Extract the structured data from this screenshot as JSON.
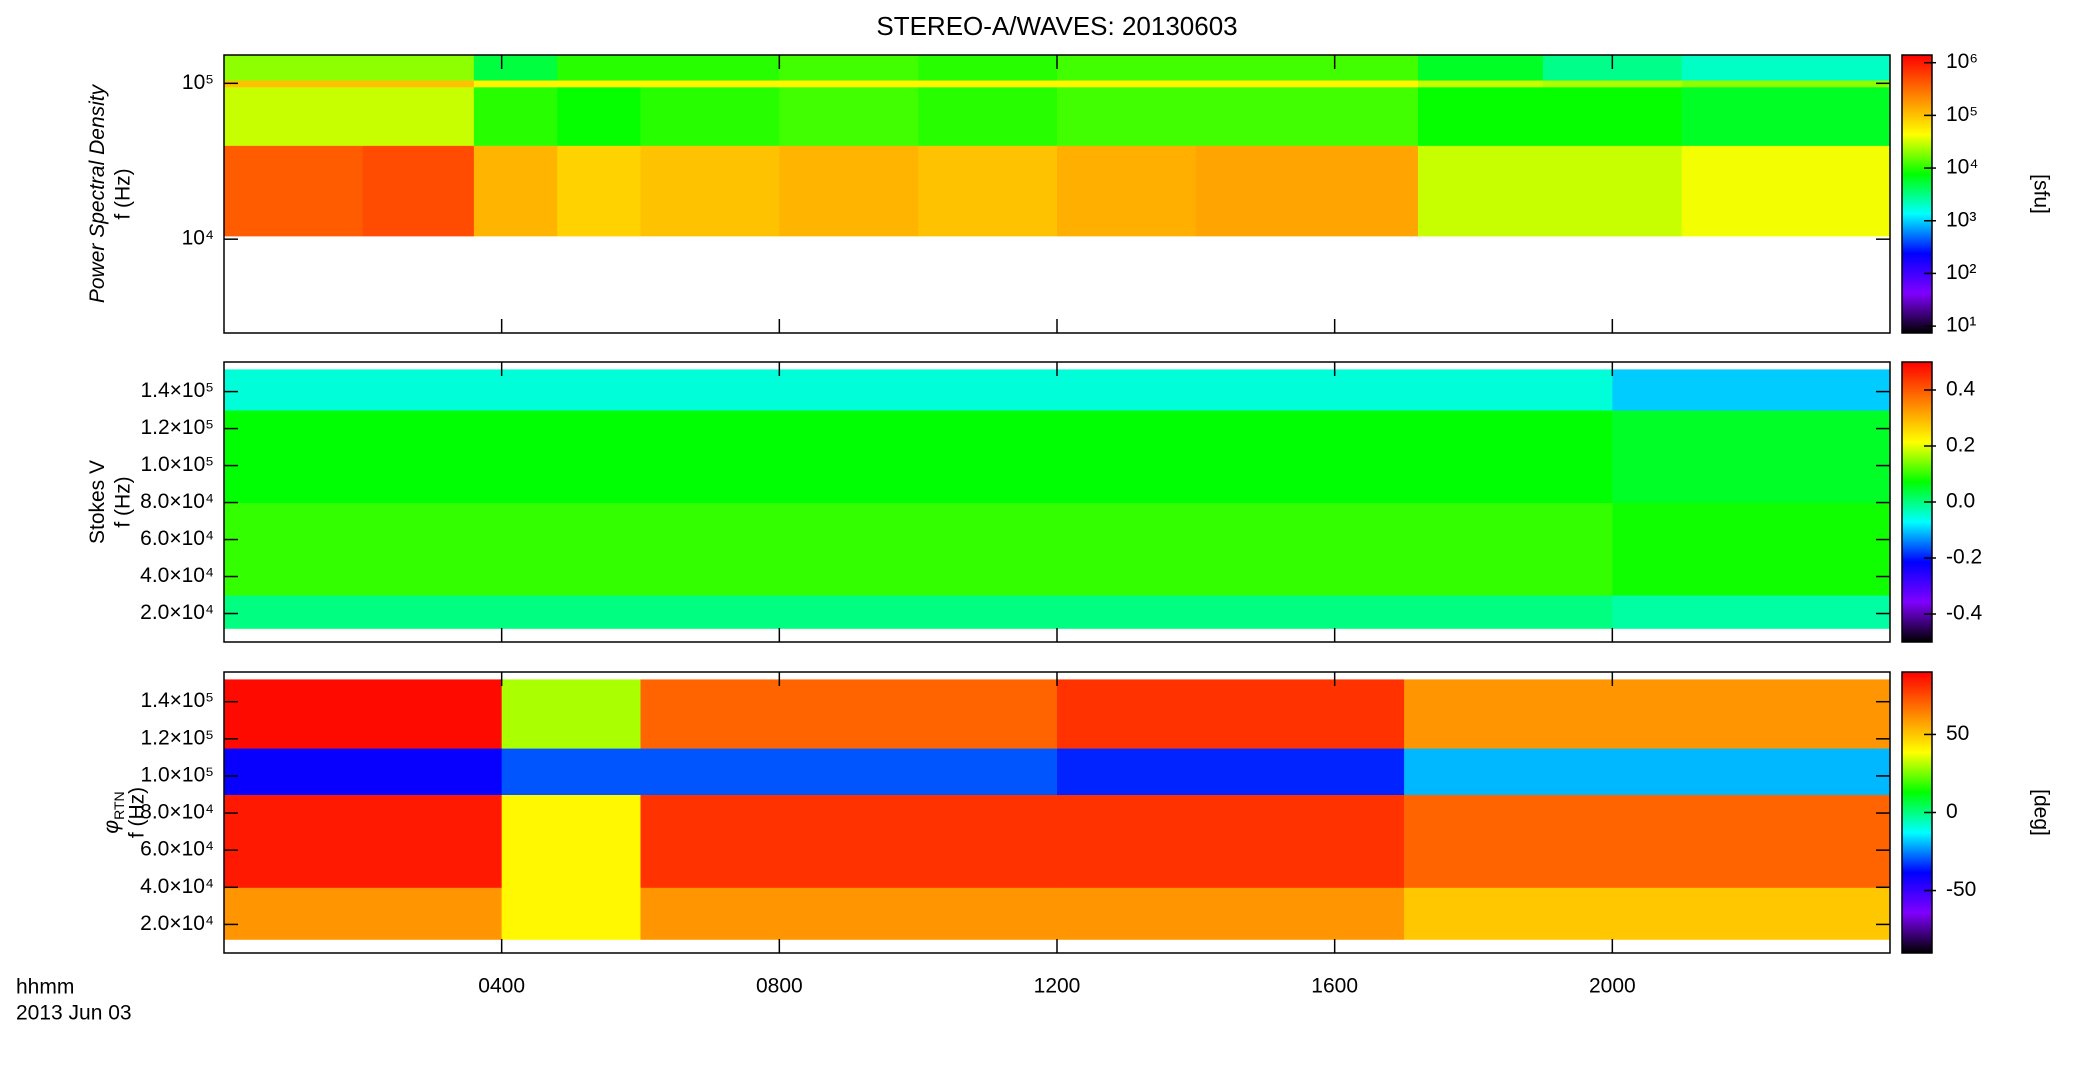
{
  "chart_data": [
    {
      "type": "heatmap",
      "title": "STEREO-A/WAVES: 20130603",
      "ylabel": "Power Spectral Density",
      "ylabel_unit": "f (Hz)",
      "clabel": "[sfu]",
      "colormap": [
        "#000000",
        "#8000ff",
        "#0000ff",
        "#00ffff",
        "#00ff00",
        "#ffff00",
        "#ff8000",
        "#ff0000"
      ],
      "x": [
        0,
        2,
        3.6,
        4.8,
        6,
        8,
        10,
        12,
        14,
        17.2,
        19,
        21,
        24
      ],
      "y": [
        10500,
        40000,
        95000,
        105000,
        152000
      ],
      "values": [
        [
          400000,
          500000,
          120000,
          80000,
          100000,
          120000,
          100000,
          130000,
          150000,
          30000,
          30000,
          40000
        ],
        [
          30000,
          30000,
          10000,
          8000,
          10000,
          12000,
          10000,
          12000,
          12000,
          8000,
          8000,
          6000
        ],
        [
          100000,
          100000,
          50000,
          50000,
          50000,
          50000,
          50000,
          50000,
          50000,
          30000,
          25000,
          20000
        ],
        [
          20000,
          20000,
          5000,
          10000,
          10000,
          12000,
          10000,
          12000,
          12000,
          6000,
          3000,
          2000
        ]
      ],
      "xlim": [
        0,
        24
      ],
      "xticks": [
        4,
        8,
        12,
        16,
        20
      ],
      "ylim": [
        2500,
        152000
      ],
      "ylog": true,
      "yticks": [
        {
          "value": 10000,
          "label": "10⁴"
        },
        {
          "value": 100000,
          "label": "10⁵"
        }
      ],
      "clim": [
        7.4,
        1400000
      ],
      "clog": true,
      "cticks": [
        {
          "value": 10,
          "label": "10¹"
        },
        {
          "value": 100,
          "label": "10²"
        },
        {
          "value": 1000,
          "label": "10³"
        },
        {
          "value": 10000,
          "label": "10⁴"
        },
        {
          "value": 100000,
          "label": "10⁵"
        },
        {
          "value": 1000000,
          "label": "10⁶"
        }
      ]
    },
    {
      "type": "heatmap",
      "ylabel": "Stokes V",
      "ylabel_unit": "f (Hz)",
      "colormap": [
        "#000000",
        "#8000ff",
        "#0000ff",
        "#00ffff",
        "#00ff00",
        "#ffff00",
        "#ff8000",
        "#ff0000"
      ],
      "x": [
        0,
        20,
        24
      ],
      "y": [
        12000,
        30000,
        80000,
        130000,
        152000
      ],
      "values": [
        [
          0.0,
          -0.02
        ],
        [
          0.1,
          0.08
        ],
        [
          0.07,
          0.05
        ],
        [
          -0.05,
          -0.1
        ]
      ],
      "xlim": [
        0,
        24
      ],
      "xticks": [
        4,
        8,
        12,
        16,
        20
      ],
      "ylim": [
        4600,
        156000
      ],
      "yticks": [
        {
          "value": 20000,
          "label": "2.0×10⁴"
        },
        {
          "value": 40000,
          "label": "4.0×10⁴"
        },
        {
          "value": 60000,
          "label": "6.0×10⁴"
        },
        {
          "value": 80000,
          "label": "8.0×10⁴"
        },
        {
          "value": 100000,
          "label": "1.0×10⁵"
        },
        {
          "value": 120000,
          "label": "1.2×10⁵"
        },
        {
          "value": 140000,
          "label": "1.4×10⁵"
        }
      ],
      "clim": [
        -0.5,
        0.5
      ],
      "cticks": [
        -0.4,
        -0.2,
        {
          "value": 0,
          "label": "0.0"
        },
        0.2,
        0.4
      ]
    },
    {
      "type": "heatmap",
      "ylabel": "φ",
      "ylabel_sub": "RTN",
      "ylabel_unit": "f (Hz)",
      "clabel": "[deg]",
      "xlabel": "hhmm",
      "date": "2013 Jun 03",
      "colormap": [
        "#000000",
        "#8000ff",
        "#0000ff",
        "#00ffff",
        "#00ff00",
        "#ffff00",
        "#ff8000",
        "#ff0000"
      ],
      "x": [
        0,
        4,
        6,
        12,
        17,
        24
      ],
      "y": [
        12000,
        40000,
        90000,
        115000,
        152000
      ],
      "values": [
        [
          60,
          40,
          60,
          60,
          50
        ],
        [
          85,
          40,
          80,
          80,
          70
        ],
        [
          -40,
          -30,
          -30,
          -35,
          -20
        ],
        [
          88,
          30,
          70,
          80,
          60
        ]
      ],
      "xlim": [
        0,
        24
      ],
      "xticks": [
        {
          "value": 4,
          "label": "0400"
        },
        {
          "value": 8,
          "label": "0800"
        },
        {
          "value": 12,
          "label": "1200"
        },
        {
          "value": 16,
          "label": "1600"
        },
        {
          "value": 20,
          "label": "2000"
        }
      ],
      "ylim": [
        4600,
        156000
      ],
      "yticks": [
        {
          "value": 20000,
          "label": "2.0×10⁴"
        },
        {
          "value": 40000,
          "label": "4.0×10⁴"
        },
        {
          "value": 60000,
          "label": "6.0×10⁴"
        },
        {
          "value": 80000,
          "label": "8.0×10⁴"
        },
        {
          "value": 100000,
          "label": "1.0×10⁵"
        },
        {
          "value": 120000,
          "label": "1.2×10⁵"
        },
        {
          "value": 140000,
          "label": "1.4×10⁵"
        }
      ],
      "clim": [
        -90,
        90
      ],
      "cticks": [
        -50,
        0,
        50
      ]
    }
  ]
}
